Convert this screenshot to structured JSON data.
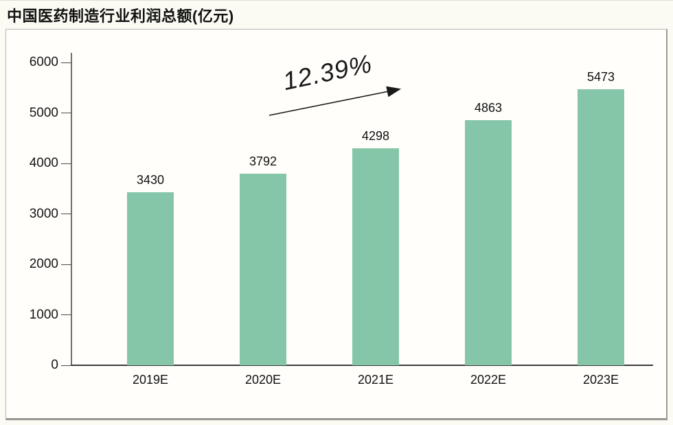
{
  "title": "中国医药制造行业利润总额(亿元)",
  "chart_data": {
    "type": "bar",
    "title": "中国医药制造行业利润总额(亿元)",
    "categories": [
      "2019E",
      "2020E",
      "2021E",
      "2022E",
      "2023E"
    ],
    "values": [
      3430,
      3792,
      4298,
      4863,
      5473
    ],
    "xlabel": "",
    "ylabel": "",
    "ylim": [
      0,
      6000
    ],
    "yticks": [
      0,
      1000,
      2000,
      3000,
      4000,
      5000,
      6000
    ],
    "grid": false,
    "legend": "none",
    "bar_color": "#85c6a9",
    "annotation": "12.39%"
  }
}
